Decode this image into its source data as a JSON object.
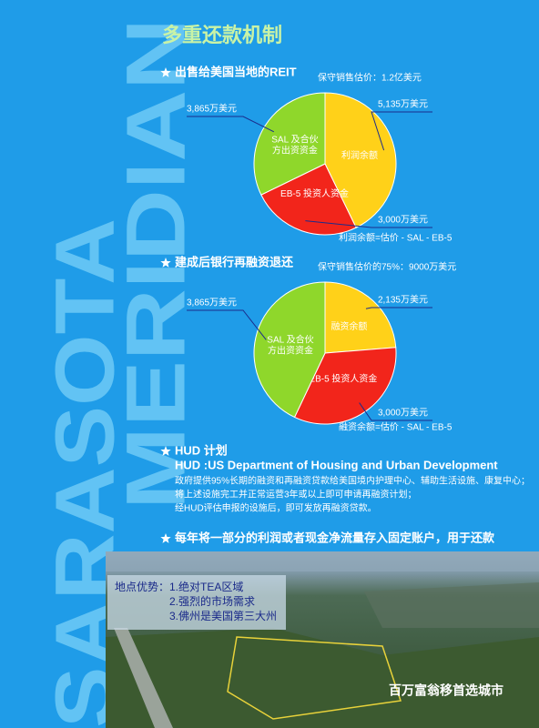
{
  "title": "多重还款机制",
  "watermark": [
    "SARASOTA",
    "MERIDIAN"
  ],
  "sections": [
    {
      "heading": "出售给美国当地的REIT"
    },
    {
      "heading": "建成后银行再融资退还"
    },
    {
      "heading": "HUD 计划",
      "subheading": "HUD :US Department of Housing and Urban Development",
      "lines": [
        "政府提供95%长期的融资和再融资贷款给美国境内护理中心、辅助生活设施、康复中心；",
        "将上述设施完工并正常运营3年或以上即可申请再融资计划；",
        "经HUD评估申报的设施后，即可发放再融资贷款。"
      ]
    },
    {
      "heading": "每年将一部分的利润或者现金净流量存入固定账户，用于还款"
    }
  ],
  "chart_data": [
    {
      "type": "pie",
      "subtitle": "保守销售估价：1.2亿美元",
      "note": "利润余额=估价 - SAL - EB-5",
      "categories": [
        "利润余额",
        "EB-5 投资人资金",
        "SAL 及合伙\n方出资资金"
      ],
      "values": [
        5135,
        3000,
        3865
      ],
      "value_labels": [
        "5,135万美元",
        "3,000万美元",
        "3,865万美元"
      ],
      "colors": [
        "#ffd119",
        "#f2251b",
        "#8fd72b"
      ]
    },
    {
      "type": "pie",
      "subtitle": "保守销售估价的75%：9000万美元",
      "note": "融资余额=估价 - SAL - EB-5",
      "categories": [
        "融资余额",
        "EB-5 投资人资金",
        "SAL 及合伙\n方出资资金"
      ],
      "values": [
        2135,
        3000,
        3865
      ],
      "value_labels": [
        "2,135万美元",
        "3,000万美元",
        "3,865万美元"
      ],
      "colors": [
        "#ffd119",
        "#f2251b",
        "#8fd72b"
      ]
    }
  ],
  "photo": {
    "advantages": [
      "地点优势：1.绝对TEA区域",
      "2.强烈的市场需求",
      "3.佛州是美国第三大州"
    ],
    "caption": "百万富翁移首选城市"
  }
}
